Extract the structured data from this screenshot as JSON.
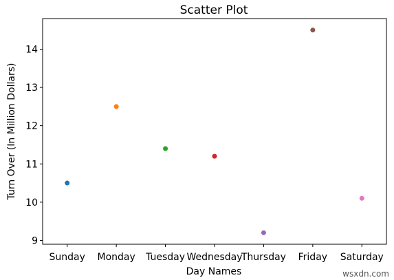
{
  "chart_data": {
    "type": "scatter",
    "title": "Scatter Plot",
    "xlabel": "Day Names",
    "ylabel": "Turn Over (In Million Dollars)",
    "categories": [
      "Sunday",
      "Monday",
      "Tuesday",
      "Wednesday",
      "Thursday",
      "Friday",
      "Saturday"
    ],
    "values": [
      10.5,
      12.5,
      11.4,
      11.2,
      9.2,
      14.5,
      10.1
    ],
    "point_colors": [
      "#1f77b4",
      "#ff7f0e",
      "#2ca02c",
      "#d62728",
      "#9467bd",
      "#8c564b",
      "#e377c2"
    ],
    "ylim": [
      8.9,
      14.8
    ],
    "yticks": [
      9,
      10,
      11,
      12,
      13,
      14
    ],
    "grid": false,
    "legend": "none"
  },
  "watermark": "wsxdn.com"
}
